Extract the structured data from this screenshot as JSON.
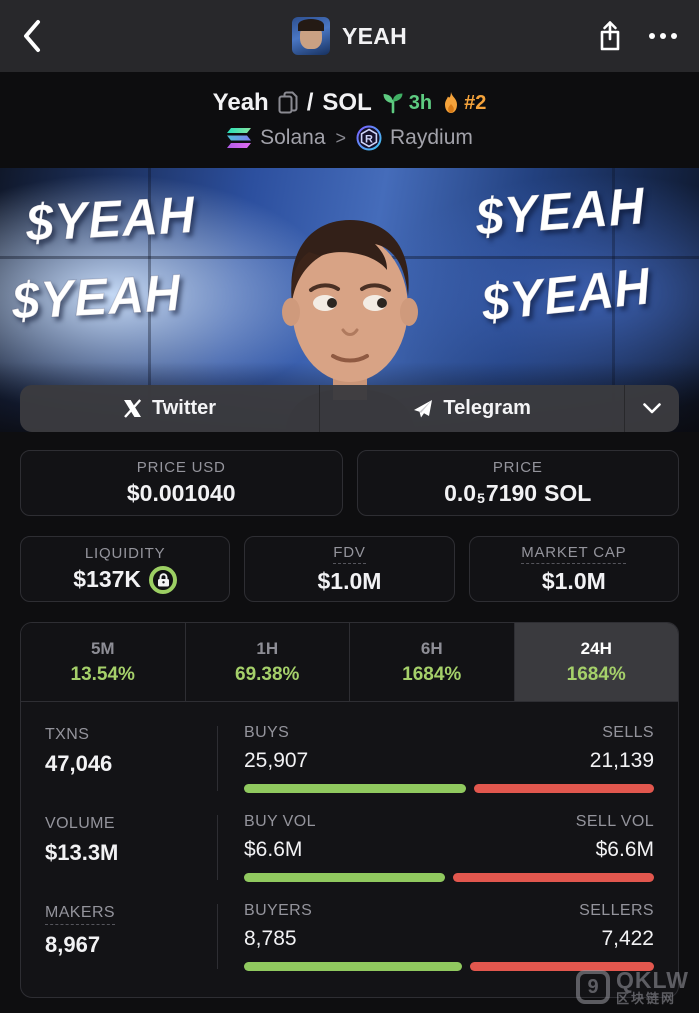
{
  "header": {
    "title": "YEAH"
  },
  "token": {
    "base": "Yeah",
    "separator": "/",
    "quote": "SOL",
    "age": "3h",
    "rank": "#2",
    "chain": "Solana",
    "chain_sep": ">",
    "dex": "Raydium"
  },
  "banner": {
    "sticker_left_top": "$YEAH",
    "sticker_left_bottom": "$YEAH",
    "sticker_right_top": "$YEAH",
    "sticker_right_bottom": "$YEAH"
  },
  "socials": {
    "twitter_label": "Twitter",
    "telegram_label": "Telegram"
  },
  "price_usd": {
    "label": "PRICE USD",
    "value": "$0.001040"
  },
  "price_native": {
    "label": "PRICE",
    "zero": "0.0",
    "sub": "5",
    "digits": "7190",
    "unit": "SOL"
  },
  "liquidity": {
    "label": "LIQUIDITY",
    "value": "$137K",
    "locked": true
  },
  "fdv": {
    "label": "FDV",
    "value": "$1.0M"
  },
  "mcap": {
    "label": "MARKET CAP",
    "value": "$1.0M"
  },
  "timeframes": [
    {
      "label": "5M",
      "change": "13.54%",
      "selected": false
    },
    {
      "label": "1H",
      "change": "69.38%",
      "selected": false
    },
    {
      "label": "6H",
      "change": "1684%",
      "selected": false
    },
    {
      "label": "24H",
      "change": "1684%",
      "selected": true
    }
  ],
  "stats": [
    {
      "label": "TXNS",
      "value": "47,046",
      "a_label": "BUYS",
      "a_value": "25,907",
      "b_label": "SELLS",
      "b_value": "21,139",
      "a_pct": 55.1,
      "b_pct": 44.9,
      "label_dashed": false
    },
    {
      "label": "VOLUME",
      "value": "$13.3M",
      "a_label": "BUY VOL",
      "a_value": "$6.6M",
      "b_label": "SELL VOL",
      "b_value": "$6.6M",
      "a_pct": 50.0,
      "b_pct": 50.0,
      "label_dashed": false
    },
    {
      "label": "MAKERS",
      "value": "8,967",
      "a_label": "BUYERS",
      "a_value": "8,785",
      "b_label": "SELLERS",
      "b_value": "7,422",
      "a_pct": 54.2,
      "b_pct": 45.8,
      "label_dashed": true
    }
  ],
  "watermark": {
    "glyph": "9",
    "brand": "QKLW",
    "sub": "区块链网"
  },
  "colors": {
    "accent_green": "#a5d06a",
    "bar_green": "#90c95f",
    "bar_red": "#e2574e",
    "age_green": "#5ecb81",
    "rank_orange": "#f5a33b",
    "header_bg": "#28282b",
    "page_bg": "#0e0e10"
  }
}
